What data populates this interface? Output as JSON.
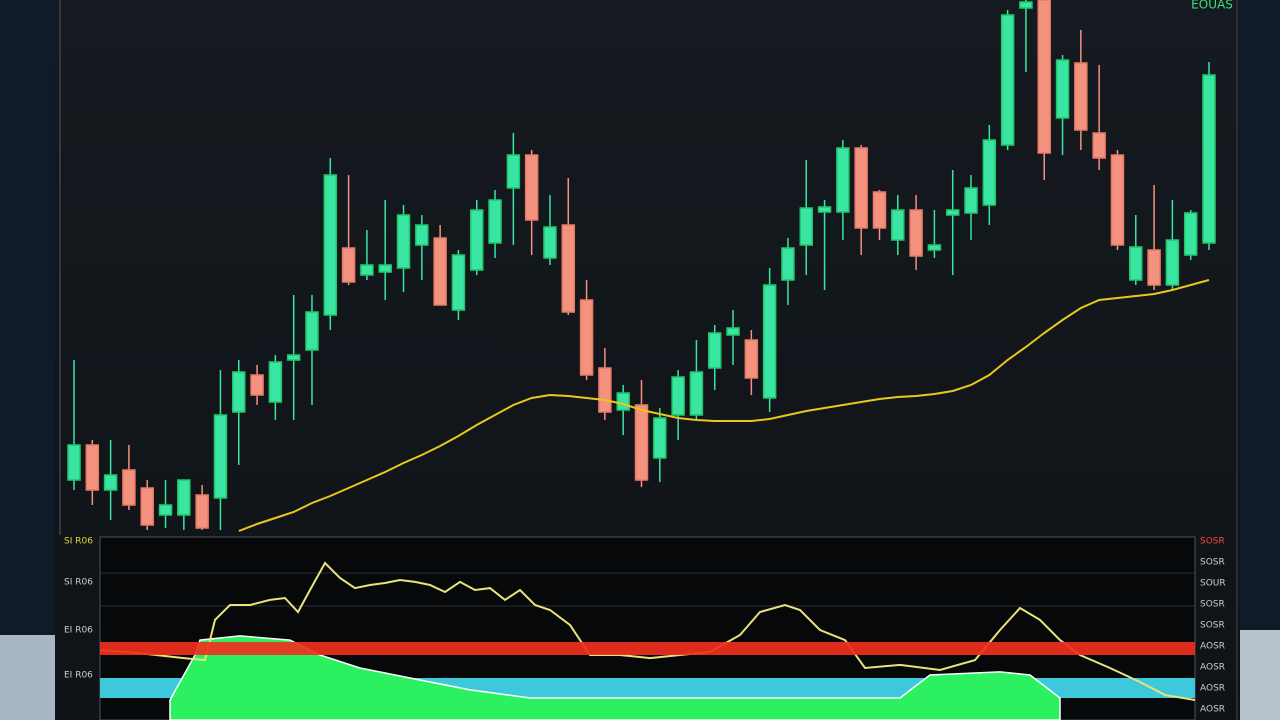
{
  "chart_data": [
    {
      "type": "candlestick",
      "title": "EOUAS",
      "up_color": "#3ae4a2",
      "down_color": "#f3927e",
      "ylim": [
        0,
        107
      ],
      "open": [
        11,
        18,
        9,
        13,
        9.4,
        4,
        4,
        8,
        7.4,
        24.6,
        32,
        26.6,
        35,
        37,
        44,
        57.4,
        52,
        52.6,
        53.4,
        58,
        59.4,
        45,
        53,
        58.4,
        69.4,
        76,
        55.4,
        62,
        47,
        33.4,
        25,
        26,
        15.4,
        24,
        24,
        33.4,
        40,
        39,
        27.4,
        51,
        58,
        64.6,
        64.6,
        77.4,
        68.6,
        59,
        65,
        57,
        64,
        64.4,
        66,
        78,
        105.4,
        107,
        83.4,
        94.4,
        80.4,
        76,
        51,
        57,
        50,
        56,
        58.4
      ],
      "high": [
        35,
        19,
        19,
        18,
        11,
        11,
        11,
        10,
        33,
        35,
        34,
        36,
        48,
        48,
        75.4,
        72,
        61,
        67,
        66,
        64,
        62,
        57,
        67,
        69,
        80.4,
        77,
        68,
        71.4,
        51,
        37.4,
        30,
        31,
        25.4,
        33,
        39,
        42,
        45,
        41,
        53.4,
        59.4,
        75,
        67,
        79,
        78,
        69,
        68,
        68,
        65,
        73,
        72,
        82,
        105,
        107,
        107,
        96,
        101,
        94,
        77,
        64,
        70,
        67,
        65,
        94.6
      ],
      "low": [
        9,
        6,
        3,
        5,
        1,
        1.4,
        1,
        1,
        1,
        14,
        26,
        23,
        23,
        26,
        41,
        50,
        51,
        47,
        48.6,
        51,
        46,
        43,
        52,
        55.4,
        58,
        56,
        54,
        44,
        31,
        23,
        20,
        9.6,
        10.6,
        19,
        23,
        29,
        34,
        28,
        24.6,
        46,
        52,
        49,
        59,
        56,
        59,
        56,
        53,
        55.4,
        52,
        59,
        62,
        77,
        92.6,
        71,
        76,
        77,
        73,
        57,
        50,
        49,
        49,
        55,
        57
      ],
      "close": [
        18,
        9,
        12,
        6,
        2,
        6,
        11,
        1.4,
        24,
        32.6,
        28,
        34.6,
        36,
        44.6,
        72,
        50.6,
        54,
        54,
        64,
        62,
        46,
        56,
        65,
        67,
        76,
        63,
        61.6,
        44.6,
        32,
        24.6,
        28.4,
        11,
        23.4,
        31.6,
        32.6,
        40.4,
        41.4,
        31.4,
        50,
        57.4,
        65.4,
        65.6,
        77.4,
        61.4,
        61.4,
        65,
        55.8,
        58,
        65,
        69.4,
        79,
        104,
        106.6,
        76.4,
        95,
        81,
        75.4,
        58,
        57.6,
        50,
        59,
        64.4,
        92
      ],
      "ma": {
        "color": "#e8c81c",
        "values": [
          null,
          null,
          null,
          null,
          null,
          null,
          null,
          null,
          null,
          0.8,
          2.2,
          3.4,
          4.6,
          6.4,
          7.8,
          9.4,
          11,
          12.6,
          14.4,
          16,
          17.8,
          19.8,
          22,
          24,
          26,
          27.4,
          28,
          27.8,
          27.4,
          27,
          26.2,
          25,
          24.2,
          23.4,
          23,
          22.8,
          22.8,
          22.8,
          23.2,
          24,
          24.8,
          25.4,
          26,
          26.6,
          27.2,
          27.6,
          27.8,
          28.2,
          28.8,
          30,
          32,
          35,
          37.6,
          40.4,
          43,
          45.4,
          47,
          47.4,
          47.8,
          48.2,
          49,
          50,
          51
        ]
      }
    },
    {
      "type": "line",
      "xlim": [
        0,
        1095
      ],
      "ylim": [
        0,
        100
      ],
      "x": [
        0,
        28,
        56,
        84,
        105,
        115,
        130,
        150,
        170,
        185,
        198,
        210,
        225,
        240,
        255,
        270,
        285,
        300,
        315,
        330,
        345,
        360,
        375,
        390,
        405,
        420,
        435,
        450,
        470,
        490,
        520,
        550,
        580,
        610,
        640,
        660,
        685,
        700,
        720,
        745,
        765,
        800,
        840,
        875,
        900,
        920,
        940,
        960,
        980,
        1010,
        1040,
        1065,
        1095
      ],
      "series": [
        {
          "color": "#ece27a",
          "values": [
            38.9,
            37.8,
            36.1,
            34.4,
            33.3,
            55.6,
            63.9,
            63.9,
            66.7,
            67.8,
            60,
            72.2,
            87.2,
            78.9,
            73.3,
            75,
            76.1,
            77.8,
            76.7,
            75,
            71.1,
            76.7,
            72.2,
            73.3,
            66.7,
            72.2,
            63.9,
            61.1,
            52.8,
            36.1,
            36.1,
            34.4,
            36.1,
            37.8,
            47.2,
            60,
            63.9,
            61.1,
            50,
            44.4,
            28.9,
            30.6,
            27.8,
            33.3,
            50,
            62.2,
            55.6,
            44.4,
            36.1,
            28.9,
            21.1,
            13.9,
            11.1
          ]
        }
      ],
      "area": {
        "color": "#2bf060",
        "x": [
          70,
          95,
          100,
          140,
          190,
          220,
          260,
          320,
          370,
          430,
          800,
          830,
          900,
          930,
          960
        ],
        "values": [
          11.1,
          36.1,
          44.4,
          46.7,
          44.4,
          36.1,
          28.9,
          22.2,
          16.7,
          12.2,
          12.2,
          25,
          26.7,
          25,
          12.2
        ]
      }
    }
  ],
  "panel_labels": {
    "left": [
      "SI R06",
      "SI R06",
      "EI R06",
      "EI R06"
    ],
    "right": [
      "SOSR",
      "SOSR",
      "SOUR",
      "SOSR",
      "SOSR",
      "AOSR",
      "AOSR",
      "AOSR",
      "AOSR"
    ]
  }
}
